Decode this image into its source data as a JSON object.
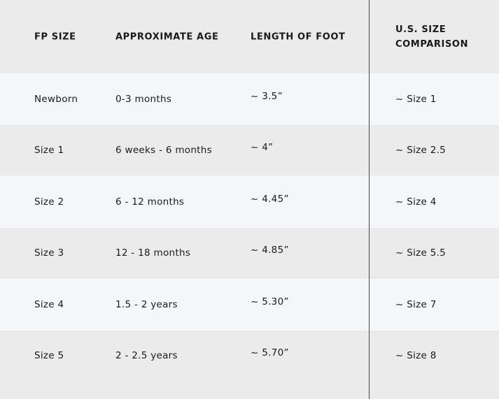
{
  "table": {
    "headers": [
      "FP SIZE",
      "APPROXIMATE AGE",
      "LENGTH OF FOOT",
      "U.S. SIZE",
      "COMPARISON"
    ],
    "rows": [
      [
        "Newborn",
        "0-3 months",
        "~ 3.5”",
        "~ Size 1"
      ],
      [
        "Size 1",
        "6 weeks - 6 months",
        "~ 4”",
        "~ Size 2.5"
      ],
      [
        "Size 2",
        "6 - 12 months",
        "~ 4.45”",
        "~ Size 4"
      ],
      [
        "Size 3",
        "12 - 18 months",
        "~ 4.85”",
        "~ Size 5.5"
      ],
      [
        "Size 4",
        "1.5 - 2 years",
        "~ 5.30”",
        "~ Size 7"
      ],
      [
        "Size 5",
        "2 - 2.5 years",
        "~ 5.70”",
        "~ Size 8"
      ]
    ]
  },
  "colors": {
    "header_bg": "#ebebeb",
    "light_row": "#f5f6f7",
    "dark_row": "#ebebeb",
    "divider": "#444444"
  }
}
